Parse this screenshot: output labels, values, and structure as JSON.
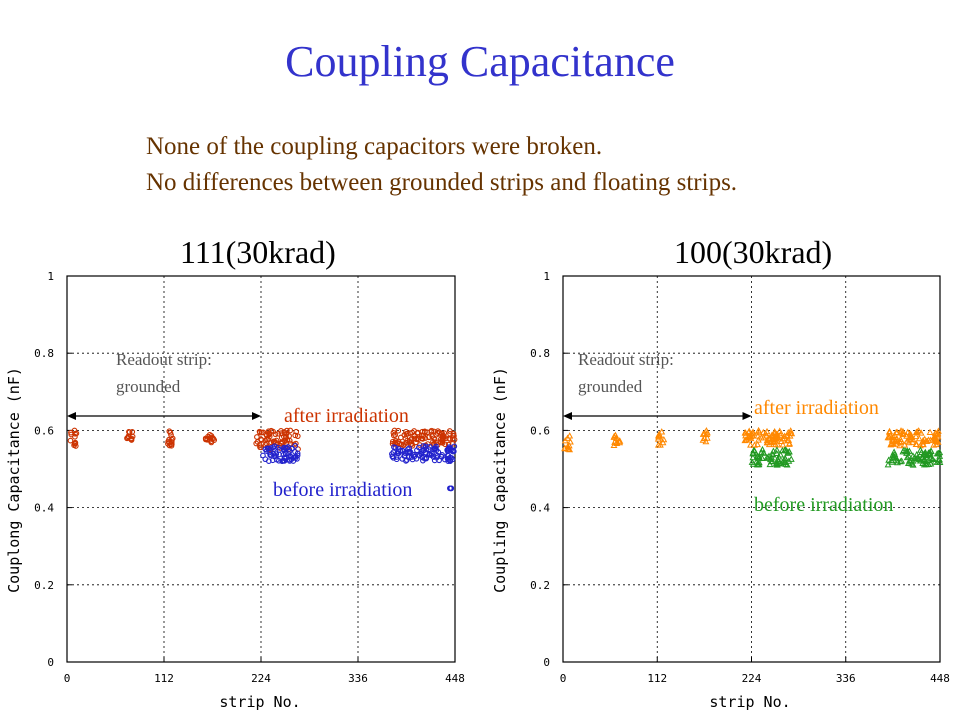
{
  "slide": {
    "title": "Coupling Capacitance",
    "notes": [
      "None of the coupling capacitors were broken.",
      "No differences between grounded strips and floating strips."
    ]
  },
  "chart_data": [
    {
      "type": "scatter",
      "title": "111(30krad)",
      "xlabel": "strip No.",
      "ylabel": "Couplong Capacitance (nF)",
      "xlim": [
        0,
        448
      ],
      "ylim": [
        0,
        1
      ],
      "xticks": [
        0,
        112,
        224,
        336,
        448
      ],
      "yticks": [
        0,
        0.2,
        0.4,
        0.6,
        0.8,
        1
      ],
      "grid": true,
      "annotations": {
        "readout": [
          "Readout strip:",
          "grounded"
        ],
        "readout_range": [
          0,
          224
        ],
        "after": "after irradiation",
        "before": "before irradiation"
      },
      "series": [
        {
          "name": "after irradiation",
          "color": "#cc3300",
          "marker": "circle",
          "clusters": [
            {
              "x": [
                3,
                12
              ],
              "y": [
                0.55,
                0.6
              ]
            },
            {
              "x": [
                68,
                76
              ],
              "y": [
                0.57,
                0.6
              ]
            },
            {
              "x": [
                114,
                124
              ],
              "y": [
                0.56,
                0.6
              ]
            },
            {
              "x": [
                160,
                170
              ],
              "y": [
                0.56,
                0.59
              ]
            },
            {
              "x": [
                218,
                268
              ],
              "y": [
                0.55,
                0.6
              ]
            },
            {
              "x": [
                375,
                448
              ],
              "y": [
                0.56,
                0.6
              ]
            }
          ]
        },
        {
          "name": "before irradiation",
          "color": "#2222cc",
          "marker": "circle",
          "clusters": [
            {
              "x": [
                226,
                268
              ],
              "y": [
                0.52,
                0.56
              ]
            },
            {
              "x": [
                375,
                448
              ],
              "y": [
                0.52,
                0.56
              ]
            },
            {
              "x": [
                442,
                444
              ],
              "y": [
                0.45,
                0.45
              ]
            }
          ]
        }
      ]
    },
    {
      "type": "scatter",
      "title": "100(30krad)",
      "xlabel": "strip No.",
      "ylabel": "Coupling Capacitance (nF)",
      "xlim": [
        0,
        448
      ],
      "ylim": [
        0,
        1
      ],
      "xticks": [
        0,
        112,
        224,
        336,
        448
      ],
      "yticks": [
        0,
        0.2,
        0.4,
        0.6,
        0.8,
        1
      ],
      "grid": true,
      "annotations": {
        "readout": [
          "Readout strip:",
          "grounded"
        ],
        "readout_range": [
          0,
          224
        ],
        "after": "after irradiation",
        "before": "before irradiation"
      },
      "series": [
        {
          "name": "after irradiation",
          "color": "#ff8800",
          "marker": "triangle",
          "clusters": [
            {
              "x": [
                2,
                10
              ],
              "y": [
                0.55,
                0.59
              ]
            },
            {
              "x": [
                60,
                68
              ],
              "y": [
                0.56,
                0.59
              ]
            },
            {
              "x": [
                112,
                120
              ],
              "y": [
                0.56,
                0.6
              ]
            },
            {
              "x": [
                165,
                172
              ],
              "y": [
                0.57,
                0.6
              ]
            },
            {
              "x": [
                216,
                224
              ],
              "y": [
                0.57,
                0.6
              ]
            },
            {
              "x": [
                222,
                272
              ],
              "y": [
                0.56,
                0.6
              ]
            },
            {
              "x": [
                386,
                448
              ],
              "y": [
                0.56,
                0.6
              ]
            }
          ]
        },
        {
          "name": "before irradiation",
          "color": "#229922",
          "marker": "triangle",
          "clusters": [
            {
              "x": [
                224,
                272
              ],
              "y": [
                0.51,
                0.55
              ]
            },
            {
              "x": [
                386,
                448
              ],
              "y": [
                0.51,
                0.55
              ]
            }
          ]
        }
      ]
    }
  ]
}
